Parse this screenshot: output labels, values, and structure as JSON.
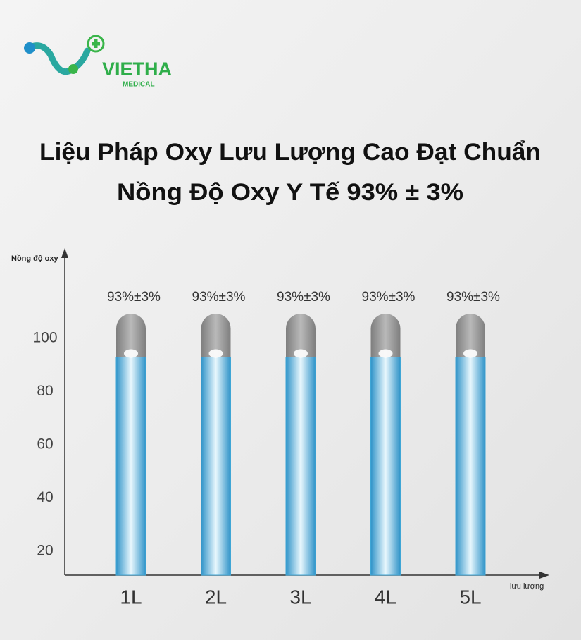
{
  "logo": {
    "name": "VIETHA",
    "sub": "MEDICAL"
  },
  "chart_data": {
    "type": "bar",
    "title": "Liệu Pháp Oxy Lưu Lượng Cao Đạt Chuẩn",
    "subtitle": "Nồng Độ Oxy Y Tế 93% ± 3%",
    "y_label": "Nồng độ oxy",
    "x_label": "lưu lượng",
    "categories": [
      "1L",
      "2L",
      "3L",
      "4L",
      "5L"
    ],
    "values": [
      93,
      93,
      93,
      93,
      93
    ],
    "value_labels": [
      "93%±3%",
      "93%±3%",
      "93%±3%",
      "93%±3%",
      "93%±3%"
    ],
    "color": "#3fa6d6",
    "ylim": [
      11,
      133
    ],
    "yticks": [
      20,
      40,
      60,
      80,
      100
    ],
    "grid": false
  }
}
